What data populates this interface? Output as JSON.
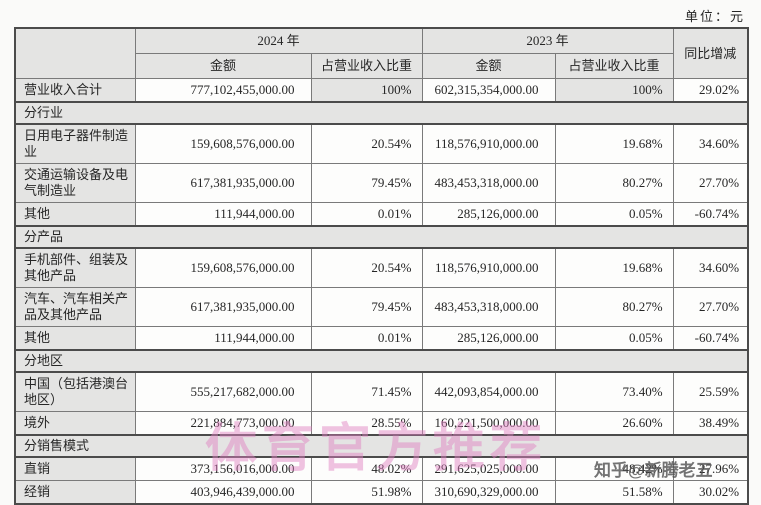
{
  "unit_label": "单位：元",
  "header": {
    "year_2024": "2024 年",
    "year_2023": "2023 年",
    "amount": "金额",
    "share": "占营业收入比重",
    "yoy": "同比增减"
  },
  "rows": [
    {
      "type": "data",
      "label": "营业收入合计",
      "amount_2024": "777,102,455,000.00",
      "share_2024": "100%",
      "amount_2023": "602,315,354,000.00",
      "share_2023": "100%",
      "yoy": "29.02%",
      "share_shaded": true
    },
    {
      "type": "section",
      "label": "分行业"
    },
    {
      "type": "data",
      "label": "日用电子器件制造业",
      "amount_2024": "159,608,576,000.00",
      "share_2024": "20.54%",
      "amount_2023": "118,576,910,000.00",
      "share_2023": "19.68%",
      "yoy": "34.60%"
    },
    {
      "type": "data",
      "label": "交通运输设备及电气制造业",
      "amount_2024": "617,381,935,000.00",
      "share_2024": "79.45%",
      "amount_2023": "483,453,318,000.00",
      "share_2023": "80.27%",
      "yoy": "27.70%"
    },
    {
      "type": "data",
      "label": "其他",
      "amount_2024": "111,944,000.00",
      "share_2024": "0.01%",
      "amount_2023": "285,126,000.00",
      "share_2023": "0.05%",
      "yoy": "-60.74%"
    },
    {
      "type": "section",
      "label": "分产品"
    },
    {
      "type": "data",
      "label": "手机部件、组装及其他产品",
      "amount_2024": "159,608,576,000.00",
      "share_2024": "20.54%",
      "amount_2023": "118,576,910,000.00",
      "share_2023": "19.68%",
      "yoy": "34.60%"
    },
    {
      "type": "data",
      "label": "汽车、汽车相关产品及其他产品",
      "amount_2024": "617,381,935,000.00",
      "share_2024": "79.45%",
      "amount_2023": "483,453,318,000.00",
      "share_2023": "80.27%",
      "yoy": "27.70%"
    },
    {
      "type": "data",
      "label": "其他",
      "amount_2024": "111,944,000.00",
      "share_2024": "0.01%",
      "amount_2023": "285,126,000.00",
      "share_2023": "0.05%",
      "yoy": "-60.74%"
    },
    {
      "type": "section",
      "label": "分地区"
    },
    {
      "type": "data",
      "label": "中国（包括港澳台地区）",
      "amount_2024": "555,217,682,000.00",
      "share_2024": "71.45%",
      "amount_2023": "442,093,854,000.00",
      "share_2023": "73.40%",
      "yoy": "25.59%"
    },
    {
      "type": "data",
      "label": "境外",
      "amount_2024": "221,884,773,000.00",
      "share_2024": "28.55%",
      "amount_2023": "160,221,500,000.00",
      "share_2023": "26.60%",
      "yoy": "38.49%"
    },
    {
      "type": "section",
      "label": "分销售模式"
    },
    {
      "type": "data",
      "label": "直销",
      "amount_2024": "373,156,016,000.00",
      "share_2024": "48.02%",
      "amount_2023": "291,625,025,000.00",
      "share_2023": "48.42%",
      "yoy": "27.96%"
    },
    {
      "type": "data",
      "label": "经销",
      "amount_2024": "403,946,439,000.00",
      "share_2024": "51.98%",
      "amount_2023": "310,690,329,000.00",
      "share_2023": "51.58%",
      "yoy": "30.02%"
    }
  ],
  "watermarks": {
    "center": "体育官方推荐",
    "corner": "知乎@新腾老五"
  },
  "colors": {
    "cell_shaded": "#e4e4e3",
    "cell_white": "#fdfdfc",
    "border": "#7a7a7a",
    "outer_border": "#4b4b4b",
    "text": "#262626",
    "watermark_pink": "#e082c2",
    "watermark_gray": "#4b4b4b"
  }
}
